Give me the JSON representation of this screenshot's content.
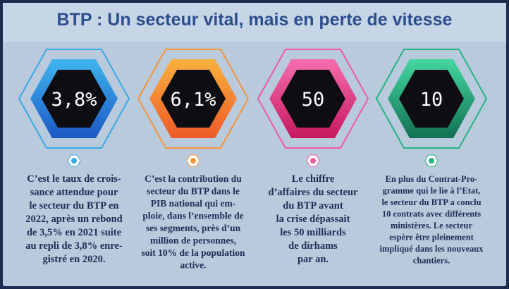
{
  "title": "BTP : Un secteur vital, mais en perte de vitesse",
  "items": [
    {
      "value": "3,8%",
      "text": [
        "C’est le taux de crois-",
        "sance attendue pour",
        "le secteur du BTP en",
        "2022, après un rebond",
        "de 3,5% en 2021 suite",
        "au repli de 3,8% enre-",
        "gistré en 2020."
      ]
    },
    {
      "value": "6,1%",
      "text": [
        "C’est la contribution du",
        "secteur du BTP dans le",
        "PIB national qui em-",
        "ploie, dans l’ensemble de",
        "ses segments, près d’un",
        "million de personnes,",
        "soit 10% de la population",
        "active."
      ]
    },
    {
      "value": "50",
      "text": [
        "Le chiffre",
        "d’affaires du secteur",
        "du BTP avant",
        "la crise dépassait",
        "les 50 milliards",
        "de dirhams",
        "par an."
      ]
    },
    {
      "value": "10",
      "text": [
        "En plus du Contrat-Pro-",
        "gramme qui le lie à l’Etat,",
        "le secteur du BTP a conclu",
        "10 contrats avec différents",
        "ministères. Le secteur",
        "espère être pleinement",
        "impliqué dans les nouveaux",
        "chantiers."
      ]
    }
  ]
}
